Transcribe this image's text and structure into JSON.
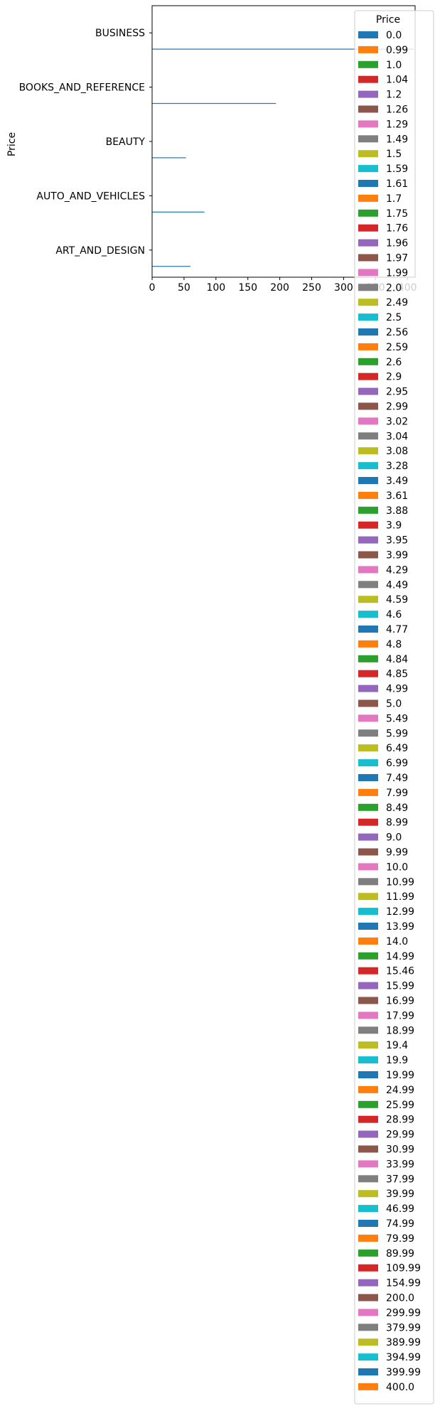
{
  "chart_data": {
    "type": "bar",
    "orientation": "horizontal",
    "title": "",
    "xlabel": "",
    "ylabel": "Price",
    "xlim": [
      0,
      412
    ],
    "xticks": [
      0,
      50,
      100,
      150,
      200,
      250,
      300,
      350,
      400
    ],
    "categories": [
      "ART_AND_DESIGN",
      "AUTO_AND_VEHICLES",
      "BEAUTY",
      "BOOKS_AND_REFERENCE",
      "BUSINESS"
    ],
    "primary_series": "0.0",
    "series_values": {
      "0.0": [
        60,
        82,
        53,
        194,
        410
      ]
    },
    "grid": false,
    "legend": {
      "title": "Price",
      "placement": "upper-right",
      "colors": [
        "#1f77b4",
        "#ff7f0e",
        "#2ca02c",
        "#d62728",
        "#9467bd",
        "#8c564b",
        "#e377c2",
        "#7f7f7f",
        "#bcbd22",
        "#17becf"
      ],
      "entries": [
        "0.0",
        "0.99",
        "1.0",
        "1.04",
        "1.2",
        "1.26",
        "1.29",
        "1.49",
        "1.5",
        "1.59",
        "1.61",
        "1.7",
        "1.75",
        "1.76",
        "1.96",
        "1.97",
        "1.99",
        "2.0",
        "2.49",
        "2.5",
        "2.56",
        "2.59",
        "2.6",
        "2.9",
        "2.95",
        "2.99",
        "3.02",
        "3.04",
        "3.08",
        "3.28",
        "3.49",
        "3.61",
        "3.88",
        "3.9",
        "3.95",
        "3.99",
        "4.29",
        "4.49",
        "4.59",
        "4.6",
        "4.77",
        "4.8",
        "4.84",
        "4.85",
        "4.99",
        "5.0",
        "5.49",
        "5.99",
        "6.49",
        "6.99",
        "7.49",
        "7.99",
        "8.49",
        "8.99",
        "9.0",
        "9.99",
        "10.0",
        "10.99",
        "11.99",
        "12.99",
        "13.99",
        "14.0",
        "14.99",
        "15.46",
        "15.99",
        "16.99",
        "17.99",
        "18.99",
        "19.4",
        "19.9",
        "19.99",
        "24.99",
        "25.99",
        "28.99",
        "29.99",
        "30.99",
        "33.99",
        "37.99",
        "39.99",
        "46.99",
        "74.99",
        "79.99",
        "89.99",
        "109.99",
        "154.99",
        "200.0",
        "299.99",
        "379.99",
        "389.99",
        "394.99",
        "399.99",
        "400.0"
      ]
    }
  }
}
